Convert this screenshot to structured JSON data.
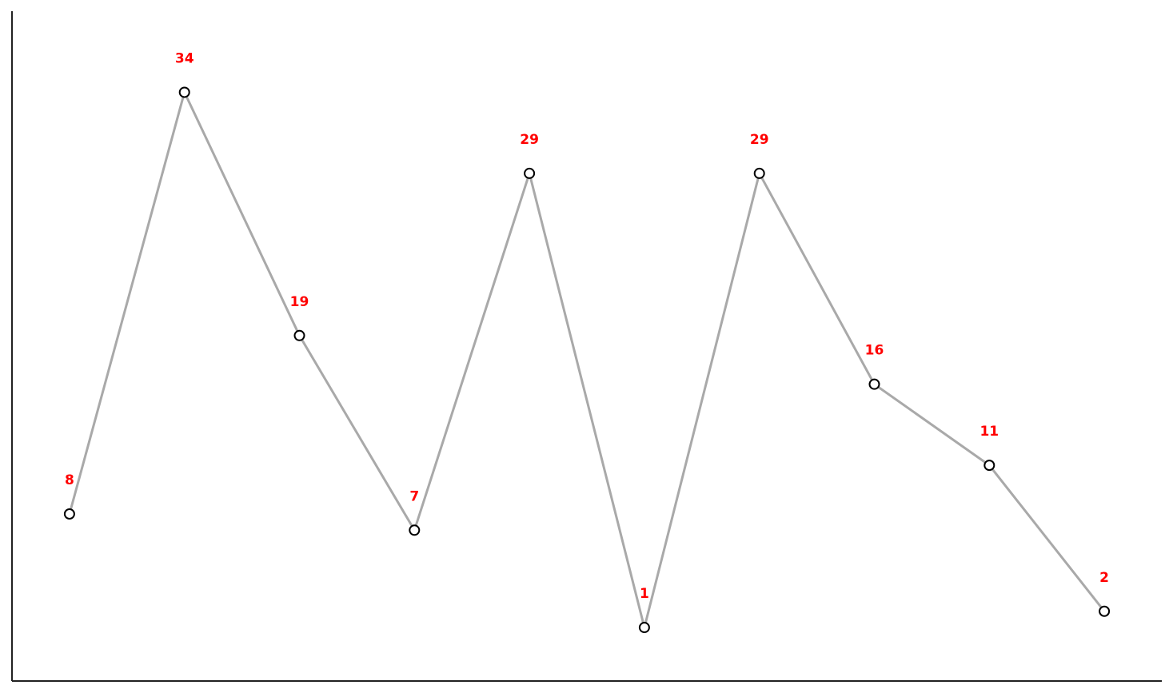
{
  "chart_data": {
    "type": "line",
    "title": "",
    "xlabel": "",
    "ylabel": "",
    "x": [
      0,
      1,
      2,
      3,
      4,
      5,
      6,
      7,
      8,
      9
    ],
    "series": [
      {
        "values": [
          8,
          34,
          19,
          7,
          29,
          1,
          29,
          16,
          11,
          2
        ]
      }
    ],
    "data_labels": [
      "8",
      "34",
      "19",
      "7",
      "29",
      "1",
      "29",
      "16",
      "11",
      "2"
    ],
    "xlim": [
      -0.5,
      9.5
    ],
    "ylim": [
      -2.3,
      39
    ],
    "grid": false,
    "legend": "none",
    "show_ticks": false,
    "colors": {
      "line": "#a9a9a9",
      "marker_edge": "#000000",
      "marker_face": "#ffffff",
      "label": "#ff0000",
      "axis": "#222222"
    }
  }
}
